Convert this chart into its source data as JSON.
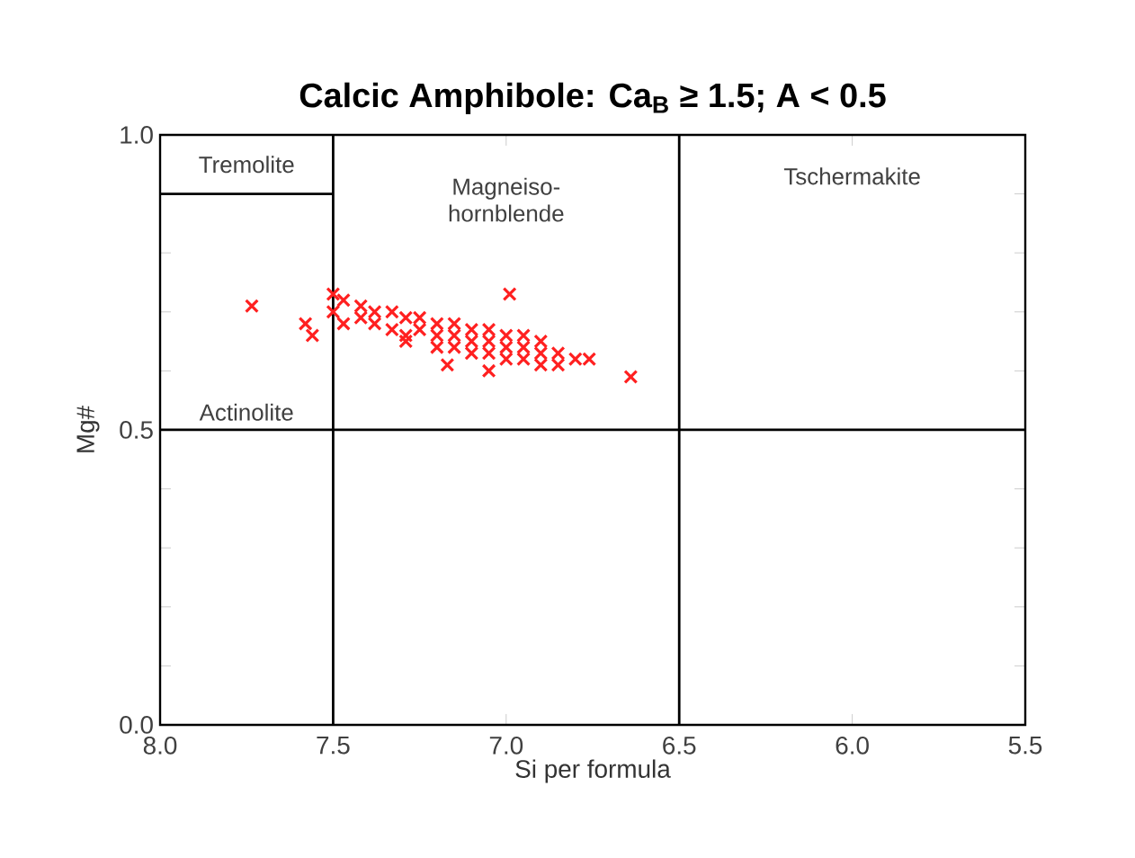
{
  "chart_data": {
    "type": "scatter",
    "title": "Calcic Amphibole: Ca$_{B}$ ≥ 1.5; A < 0.5",
    "xlabel": "Si per formula",
    "ylabel": "Mg#",
    "xlim": [
      8.0,
      5.5
    ],
    "ylim": [
      0.0,
      1.0
    ],
    "xticks": [
      {
        "value": 8.0,
        "label": "8.0"
      },
      {
        "value": 7.5,
        "label": "7.5"
      },
      {
        "value": 7.0,
        "label": "7.0"
      },
      {
        "value": 6.5,
        "label": "6.5"
      },
      {
        "value": 6.0,
        "label": "6.0"
      },
      {
        "value": 5.5,
        "label": "5.5"
      }
    ],
    "yticks": [
      {
        "value": 0.0,
        "label": "0.0"
      },
      {
        "value": 0.1,
        "label": null
      },
      {
        "value": 0.2,
        "label": null
      },
      {
        "value": 0.3,
        "label": null
      },
      {
        "value": 0.4,
        "label": null
      },
      {
        "value": 0.5,
        "label": "0.5"
      },
      {
        "value": 0.6,
        "label": null
      },
      {
        "value": 0.7,
        "label": null
      },
      {
        "value": 0.8,
        "label": null
      },
      {
        "value": 0.9,
        "label": null
      },
      {
        "value": 1.0,
        "label": "1.0"
      }
    ],
    "series": [
      {
        "color": "#ff2020",
        "marker": "cross",
        "x": [
          7.735,
          7.58,
          7.56,
          7.5,
          7.5,
          7.47,
          7.47,
          7.42,
          7.42,
          7.38,
          7.38,
          7.33,
          7.33,
          7.29,
          7.29,
          7.29,
          7.25,
          7.25,
          7.2,
          7.2,
          7.2,
          7.17,
          7.15,
          7.15,
          7.15,
          7.1,
          7.1,
          7.1,
          7.05,
          7.05,
          7.05,
          7.05,
          7.0,
          7.0,
          7.0,
          6.99,
          6.95,
          6.95,
          6.95,
          6.9,
          6.9,
          6.9,
          6.85,
          6.85,
          6.8,
          6.76,
          6.64
        ],
        "values": [
          0.71,
          0.68,
          0.66,
          0.73,
          0.7,
          0.72,
          0.68,
          0.71,
          0.69,
          0.7,
          0.68,
          0.7,
          0.67,
          0.69,
          0.66,
          0.65,
          0.69,
          0.67,
          0.68,
          0.66,
          0.64,
          0.61,
          0.68,
          0.66,
          0.64,
          0.67,
          0.65,
          0.63,
          0.67,
          0.65,
          0.63,
          0.6,
          0.66,
          0.64,
          0.62,
          0.73,
          0.66,
          0.64,
          0.62,
          0.65,
          0.63,
          0.61,
          0.63,
          0.61,
          0.62,
          0.62,
          0.59
        ]
      },
      {
        "type": "line",
        "marker": "none",
        "color": "#000000",
        "x": [
          8.0,
          7.5
        ],
        "values": [
          0.9,
          0.9
        ]
      }
    ],
    "ref_lines": [
      {
        "axis": "x",
        "value": 7.5,
        "color": "#000000"
      },
      {
        "axis": "x",
        "value": 6.5,
        "color": "#000000"
      },
      {
        "axis": "y",
        "value": 0.5,
        "color": "#000000"
      }
    ],
    "annotations": [
      "Tremolite",
      "Magneiso- hornblende",
      "Tschermakite",
      "Actinolite"
    ]
  }
}
